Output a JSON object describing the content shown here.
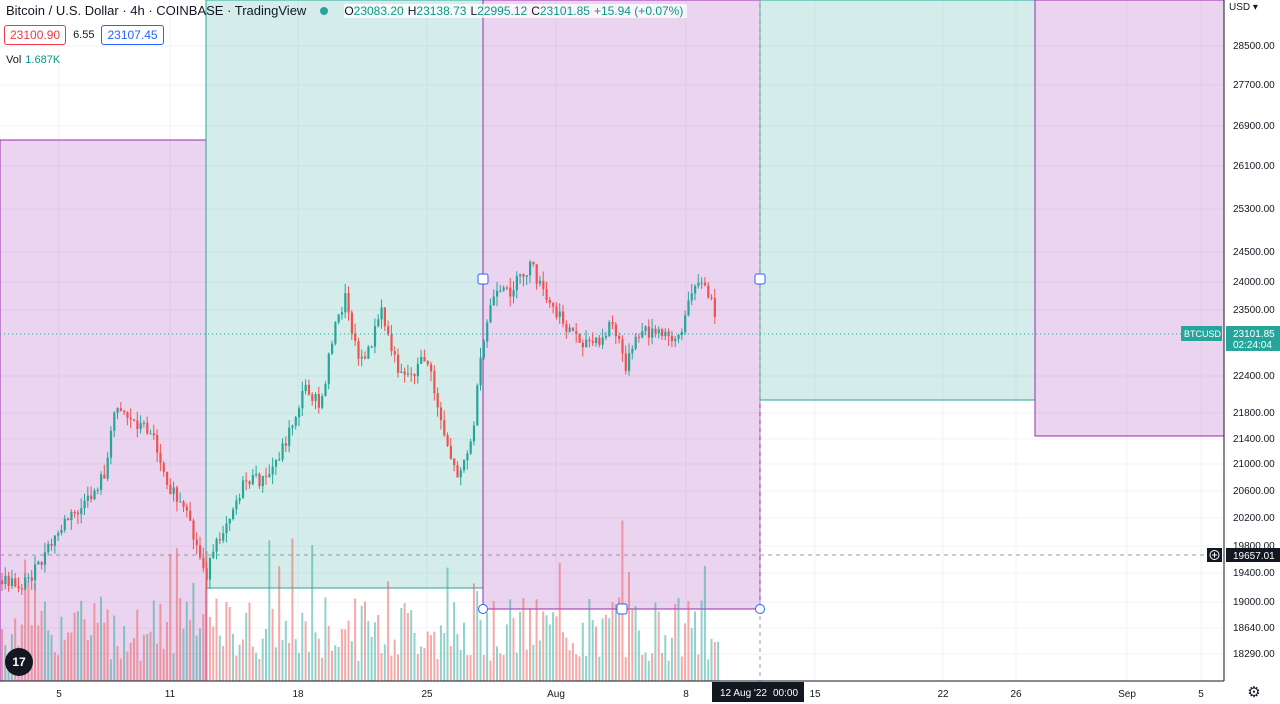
{
  "header": {
    "title": "Bitcoin / U.S. Dollar · 4h · COINBASE · TradingView",
    "ohlc": {
      "open_key": "O",
      "open": "23083.20",
      "high_key": "H",
      "high": "23138.73",
      "low_key": "L",
      "low": "22995.12",
      "close_key": "C",
      "close": "23101.85",
      "change": "+15.94 (+0.07%)"
    },
    "sell_price": "23100.90",
    "spread": "6.55",
    "buy_price": "23107.45",
    "volume_label": "Vol",
    "volume_value": "1.687K",
    "currency": "USD"
  },
  "price_axis": {
    "ticks": [
      "28500.00",
      "27700.00",
      "26900.00",
      "26100.00",
      "25300.00",
      "24500.00",
      "24000.00",
      "23500.00",
      "22400.00",
      "21800.00",
      "21400.00",
      "21000.00",
      "20600.00",
      "20200.00",
      "19800.00",
      "19400.00",
      "19000.00",
      "18640.00",
      "18290.00"
    ],
    "symbol_label": "BTCUSD",
    "last_price": "23101.85",
    "countdown": "02:24:04",
    "crosshair_price": "19657.01"
  },
  "time_axis": {
    "ticks": [
      "5",
      "11",
      "18",
      "25",
      "Aug",
      "8",
      "15",
      "22",
      "26",
      "Sep",
      "5"
    ],
    "cursor_label": "12 Aug '22",
    "cursor_time": "00:00"
  },
  "colors": {
    "up": "#26a69a",
    "down": "#ef5350",
    "zone_purple": "#9c27b0",
    "zone_green": "#26a69a"
  },
  "icons": {
    "logo": "tradingview-logo-icon",
    "settings": "gear-icon",
    "crosshair": "crosshair-plus-icon"
  }
}
